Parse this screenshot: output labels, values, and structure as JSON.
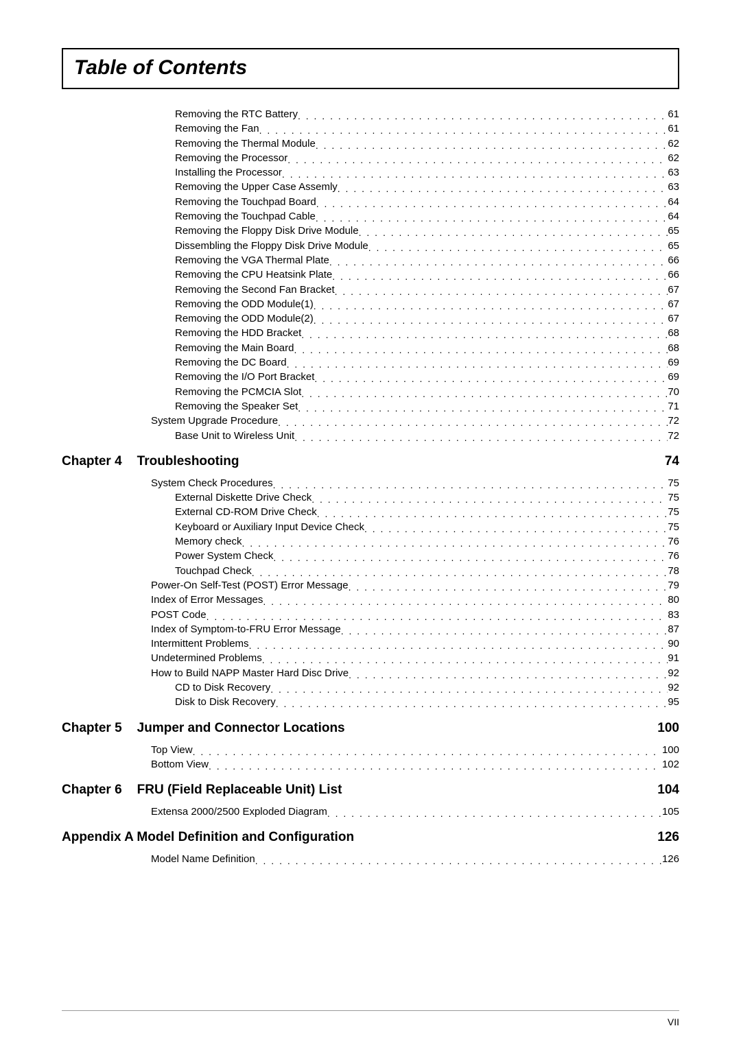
{
  "title": "Table of Contents",
  "initial_items": [
    {
      "label": "Removing the RTC Battery",
      "page": "61",
      "level": 2
    },
    {
      "label": "Removing the Fan",
      "page": "61",
      "level": 2
    },
    {
      "label": "Removing the Thermal Module",
      "page": "62",
      "level": 2
    },
    {
      "label": "Removing the Processor",
      "page": "62",
      "level": 2
    },
    {
      "label": "Installing the Processor",
      "page": "63",
      "level": 2
    },
    {
      "label": "Removing the Upper Case Assemly",
      "page": "63",
      "level": 2
    },
    {
      "label": "Removing the Touchpad Board",
      "page": "64",
      "level": 2
    },
    {
      "label": "Removing the Touchpad Cable",
      "page": "64",
      "level": 2
    },
    {
      "label": "Removing the Floppy Disk Drive Module",
      "page": "65",
      "level": 2
    },
    {
      "label": "Dissembling the Floppy Disk Drive Module",
      "page": "65",
      "level": 2
    },
    {
      "label": "Removing the VGA Thermal Plate",
      "page": "66",
      "level": 2
    },
    {
      "label": "Removing the CPU Heatsink Plate",
      "page": "66",
      "level": 2
    },
    {
      "label": "Removing the Second Fan Bracket",
      "page": "67",
      "level": 2
    },
    {
      "label": "Removing the ODD Module(1)",
      "page": "67",
      "level": 2
    },
    {
      "label": "Removing the ODD Module(2)",
      "page": "67",
      "level": 2
    },
    {
      "label": "Removing the HDD Bracket",
      "page": "68",
      "level": 2
    },
    {
      "label": "Removing the Main Board",
      "page": "68",
      "level": 2
    },
    {
      "label": "Removing the DC Board",
      "page": "69",
      "level": 2
    },
    {
      "label": "Removing the I/O Port Bracket",
      "page": "69",
      "level": 2
    },
    {
      "label": "Removing the PCMCIA Slot",
      "page": "70",
      "level": 2
    },
    {
      "label": "Removing the Speaker Set",
      "page": "71",
      "level": 2
    },
    {
      "label": "System Upgrade Procedure",
      "page": "72",
      "level": 1
    },
    {
      "label": "Base Unit to Wireless Unit",
      "page": "72",
      "level": 2
    }
  ],
  "chapters": [
    {
      "num": "Chapter 4",
      "title": "Troubleshooting",
      "page": "74",
      "items": [
        {
          "label": "System Check Procedures",
          "page": "75",
          "level": 1
        },
        {
          "label": "External Diskette Drive Check",
          "page": "75",
          "level": 2
        },
        {
          "label": "External CD-ROM Drive Check",
          "page": "75",
          "level": 2
        },
        {
          "label": "Keyboard or Auxiliary Input Device Check",
          "page": "75",
          "level": 2
        },
        {
          "label": "Memory check",
          "page": "76",
          "level": 2
        },
        {
          "label": "Power System Check",
          "page": "76",
          "level": 2
        },
        {
          "label": "Touchpad Check",
          "page": "78",
          "level": 2
        },
        {
          "label": "Power-On Self-Test (POST) Error Message",
          "page": "79",
          "level": 1
        },
        {
          "label": "Index of Error Messages",
          "page": "80",
          "level": 1
        },
        {
          "label": "POST Code",
          "page": "83",
          "level": 1
        },
        {
          "label": "Index of Symptom-to-FRU Error Message",
          "page": "87",
          "level": 1
        },
        {
          "label": "Intermittent Problems",
          "page": "90",
          "level": 1
        },
        {
          "label": "Undetermined Problems",
          "page": "91",
          "level": 1
        },
        {
          "label": "How to Build NAPP Master Hard Disc Drive",
          "page": "92",
          "level": 1
        },
        {
          "label": "CD to Disk Recovery",
          "page": "92",
          "level": 2
        },
        {
          "label": "Disk to Disk Recovery",
          "page": "95",
          "level": 2
        }
      ]
    },
    {
      "num": "Chapter 5",
      "title": "Jumper and Connector Locations",
      "page": "100",
      "items": [
        {
          "label": "Top View",
          "page": "100",
          "level": 1
        },
        {
          "label": "Bottom View",
          "page": "102",
          "level": 1
        }
      ]
    },
    {
      "num": "Chapter 6",
      "title": "FRU (Field Replaceable Unit) List",
      "page": "104",
      "items": [
        {
          "label": "Extensa 2000/2500 Exploded Diagram",
          "page": "105",
          "level": 1
        }
      ]
    }
  ],
  "appendix": {
    "title": "Appendix A  Model Definition and Configuration",
    "page": "126",
    "items": [
      {
        "label": "Model Name Definition",
        "page": "126",
        "level": 1
      }
    ]
  },
  "footer_page": "VII"
}
